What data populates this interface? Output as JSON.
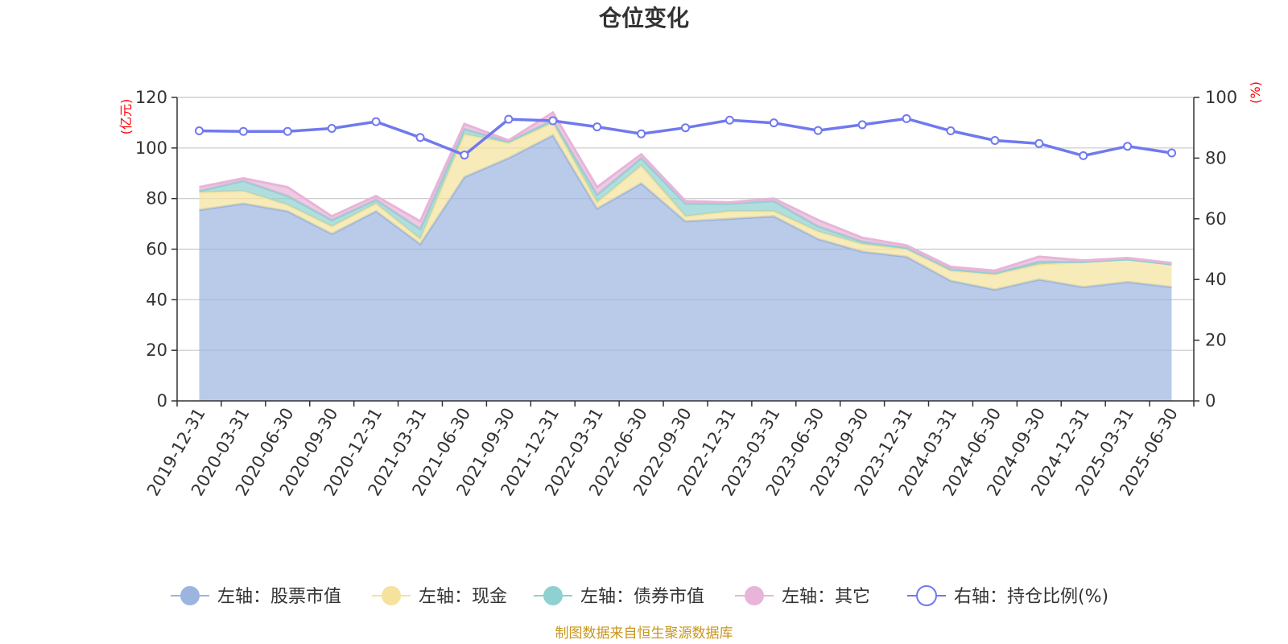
{
  "chart_data": {
    "type": "area",
    "title": "仓位变化",
    "left_axis": {
      "unit": "(亿元)",
      "ylim": [
        0,
        120
      ],
      "ticks": [
        0,
        20,
        40,
        60,
        80,
        100,
        120
      ]
    },
    "right_axis": {
      "unit": "(%)",
      "ylim": [
        0,
        100
      ],
      "ticks": [
        0,
        20,
        40,
        60,
        80,
        100
      ]
    },
    "grid": true,
    "stacked": true,
    "legend_position": "bottom",
    "categories": [
      "2019-12-31",
      "2020-03-31",
      "2020-06-30",
      "2020-09-30",
      "2020-12-31",
      "2021-03-31",
      "2021-06-30",
      "2021-09-30",
      "2021-12-31",
      "2022-03-31",
      "2022-06-30",
      "2022-09-30",
      "2022-12-31",
      "2023-03-31",
      "2023-06-30",
      "2023-09-30",
      "2023-12-31",
      "2024-03-31",
      "2024-06-30",
      "2024-09-30",
      "2024-12-31",
      "2025-03-31",
      "2025-06-30"
    ],
    "series": [
      {
        "name": "左轴：股票市值",
        "axis": "left",
        "color": "#9bb5e0",
        "values": [
          75.5,
          78,
          75,
          66,
          75,
          62,
          88.5,
          96,
          105,
          76,
          86,
          71,
          72,
          73,
          64,
          59,
          57,
          47.5,
          44,
          48,
          45,
          47,
          45
        ]
      },
      {
        "name": "左轴：现金",
        "axis": "left",
        "color": "#f5e29c",
        "values": [
          7,
          5,
          2.5,
          3,
          3,
          2,
          17,
          6,
          5,
          2.5,
          7,
          2,
          3,
          2,
          3,
          3,
          3,
          4,
          6,
          6,
          10,
          9,
          9
        ]
      },
      {
        "name": "左轴：债券市值",
        "axis": "left",
        "color": "#8fd0d0",
        "values": [
          0.5,
          4,
          3.5,
          2.5,
          1.5,
          4,
          2,
          0.5,
          1,
          3,
          3,
          5,
          3,
          4,
          2,
          1,
          0.5,
          0.5,
          0.5,
          1,
          0,
          0,
          0
        ]
      },
      {
        "name": "左轴：其它",
        "axis": "left",
        "color": "#e8b4d8",
        "values": [
          1.5,
          1,
          3.5,
          1.5,
          1.5,
          3,
          2,
          0.5,
          3,
          3,
          1.5,
          1,
          0.5,
          1,
          2.5,
          1.5,
          1,
          1,
          1,
          2,
          0.5,
          0.5,
          0.5
        ]
      },
      {
        "name": "右轴：持仓比例(%)",
        "axis": "right",
        "color": "#7079ee",
        "values": [
          89,
          88.8,
          88.8,
          89.8,
          92,
          86.8,
          81,
          92.8,
          92.3,
          90.3,
          88,
          90,
          92.5,
          91.6,
          89.1,
          91,
          93,
          89,
          85.8,
          84.8,
          80.8,
          83.9,
          81.7
        ]
      }
    ]
  },
  "source_note": "制图数据来自恒生聚源数据库"
}
